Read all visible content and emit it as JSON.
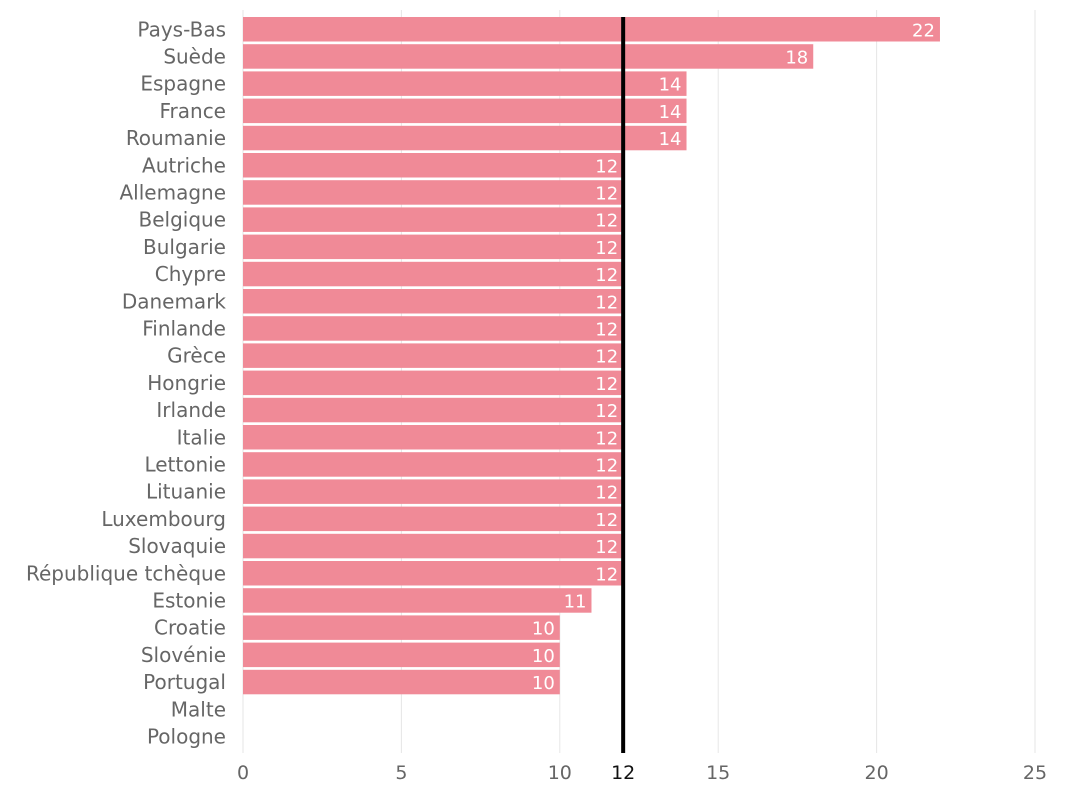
{
  "chart_data": {
    "type": "bar",
    "orientation": "horizontal",
    "categories": [
      "Pays-Bas",
      "Suède",
      "Espagne",
      "France",
      "Roumanie",
      "Autriche",
      "Allemagne",
      "Belgique",
      "Bulgarie",
      "Chypre",
      "Danemark",
      "Finlande",
      "Grèce",
      "Hongrie",
      "Irlande",
      "Italie",
      "Lettonie",
      "Lituanie",
      "Luxembourg",
      "Slovaquie",
      "République tchèque",
      "Estonie",
      "Croatie",
      "Slovénie",
      "Portugal",
      "Malte",
      "Pologne"
    ],
    "values": [
      22,
      18,
      14,
      14,
      14,
      12,
      12,
      12,
      12,
      12,
      12,
      12,
      12,
      12,
      12,
      12,
      12,
      12,
      12,
      12,
      12,
      11,
      10,
      10,
      10,
      null,
      null
    ],
    "title": "",
    "xlabel": "",
    "ylabel": "",
    "xlim": [
      0,
      25
    ],
    "xticks": [
      0,
      5,
      10,
      15,
      20,
      25
    ],
    "reference_line": {
      "value": 12,
      "label": "12",
      "color": "#000000"
    },
    "bar_color": "#f08a97",
    "grid": "vertical",
    "legend": "none"
  }
}
